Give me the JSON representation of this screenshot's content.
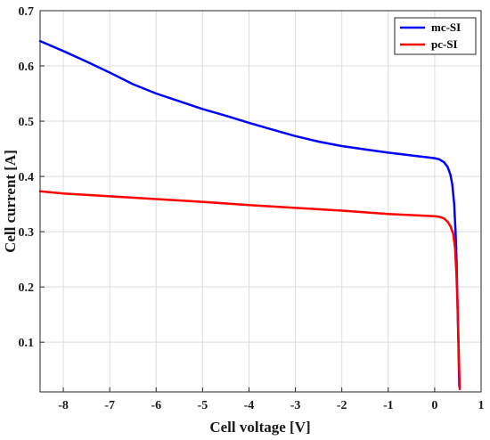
{
  "chart_data": {
    "type": "line",
    "title": "",
    "xlabel": "Cell voltage [V]",
    "ylabel": "Cell current [A]",
    "xlim": [
      -8.5,
      1
    ],
    "ylim": [
      0.01,
      0.7
    ],
    "x_ticks": [
      -8,
      -7,
      -6,
      -5,
      -4,
      -3,
      -2,
      -1,
      0,
      1
    ],
    "x_tick_labels": [
      "-8",
      "-7",
      "-6",
      "-5",
      "-4",
      "-3",
      "-2",
      "-1",
      "0",
      "1"
    ],
    "y_ticks": [
      0.1,
      0.2,
      0.3,
      0.4,
      0.5,
      0.6,
      0.7
    ],
    "y_tick_labels": [
      "0.1",
      "0.2",
      "0.3",
      "0.4",
      "0.5",
      "0.6",
      "0.7"
    ],
    "grid": true,
    "legend_position": "top-right",
    "series": [
      {
        "name": "mc-SI",
        "color": "#0000ff",
        "points": [
          [
            -8.5,
            0.645
          ],
          [
            -8.0,
            0.627
          ],
          [
            -7.5,
            0.608
          ],
          [
            -7.0,
            0.588
          ],
          [
            -6.5,
            0.567
          ],
          [
            -6.0,
            0.55
          ],
          [
            -5.5,
            0.536
          ],
          [
            -5.0,
            0.522
          ],
          [
            -4.5,
            0.51
          ],
          [
            -4.0,
            0.497
          ],
          [
            -3.5,
            0.485
          ],
          [
            -3.0,
            0.473
          ],
          [
            -2.5,
            0.463
          ],
          [
            -2.0,
            0.455
          ],
          [
            -1.5,
            0.449
          ],
          [
            -1.0,
            0.443
          ],
          [
            -0.5,
            0.438
          ],
          [
            -0.2,
            0.435
          ],
          [
            0.0,
            0.433
          ],
          [
            0.1,
            0.431
          ],
          [
            0.2,
            0.426
          ],
          [
            0.28,
            0.417
          ],
          [
            0.34,
            0.403
          ],
          [
            0.38,
            0.385
          ],
          [
            0.42,
            0.35
          ],
          [
            0.45,
            0.3
          ],
          [
            0.47,
            0.25
          ],
          [
            0.49,
            0.18
          ],
          [
            0.51,
            0.1
          ],
          [
            0.53,
            0.02
          ]
        ]
      },
      {
        "name": "pc-SI",
        "color": "#ff0000",
        "points": [
          [
            -8.5,
            0.373
          ],
          [
            -8.0,
            0.369
          ],
          [
            -7.0,
            0.364
          ],
          [
            -6.0,
            0.359
          ],
          [
            -5.0,
            0.354
          ],
          [
            -4.0,
            0.348
          ],
          [
            -3.0,
            0.343
          ],
          [
            -2.0,
            0.338
          ],
          [
            -1.0,
            0.332
          ],
          [
            -0.5,
            0.33
          ],
          [
            0.0,
            0.328
          ],
          [
            0.1,
            0.327
          ],
          [
            0.2,
            0.324
          ],
          [
            0.28,
            0.318
          ],
          [
            0.34,
            0.31
          ],
          [
            0.4,
            0.296
          ],
          [
            0.44,
            0.27
          ],
          [
            0.47,
            0.22
          ],
          [
            0.5,
            0.15
          ],
          [
            0.52,
            0.08
          ],
          [
            0.54,
            0.015
          ]
        ]
      }
    ]
  }
}
